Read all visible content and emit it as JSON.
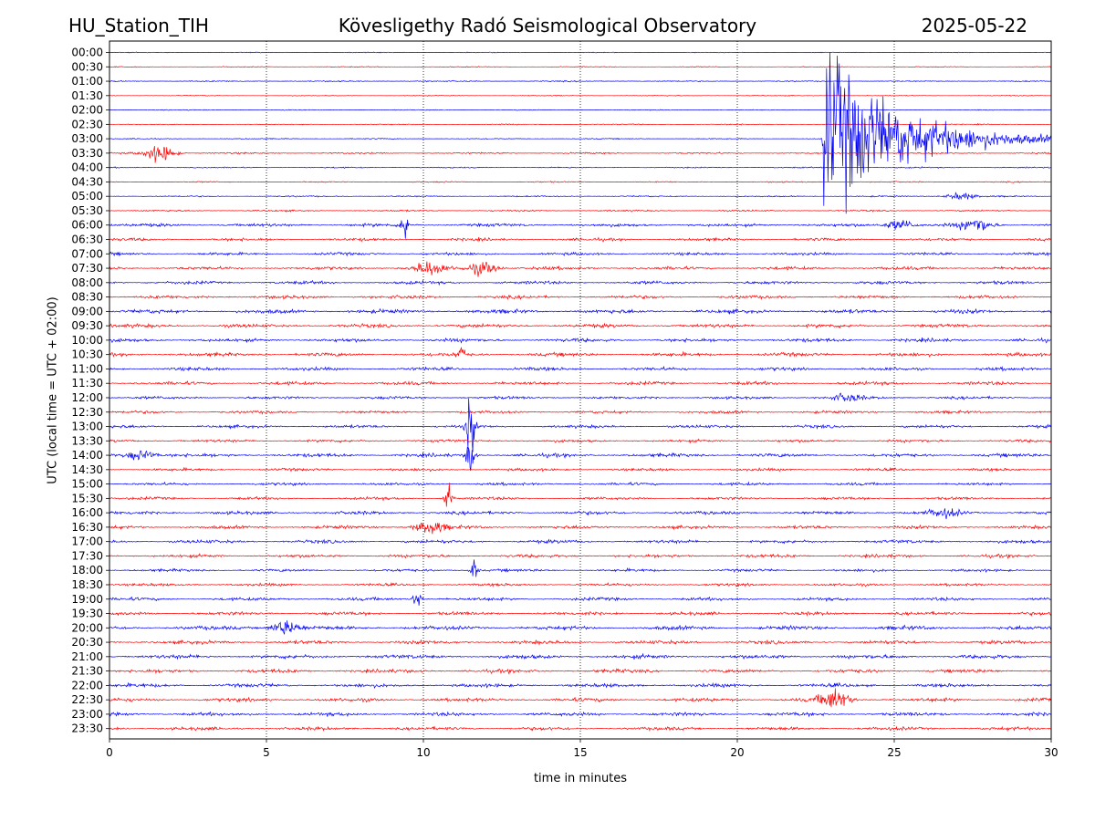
{
  "header": {
    "station": "HU_Station_TIH",
    "observatory": "Kövesligethy Radó Seismological Observatory",
    "date": "2025-05-22"
  },
  "chart_data": {
    "type": "line",
    "title": "Kövesligethy Radó Seismological Observatory",
    "xlabel": "time in minutes",
    "ylabel": "UTC (local time = UTC + 02:00)",
    "xlim": [
      0,
      30
    ],
    "x_ticks": [
      0,
      5,
      10,
      15,
      20,
      25,
      30
    ],
    "grid": "vertical dotted lines at 5-minute intervals",
    "row_labels": [
      "00:00",
      "00:30",
      "01:00",
      "01:30",
      "02:00",
      "02:30",
      "03:00",
      "03:30",
      "04:00",
      "04:30",
      "05:00",
      "05:30",
      "06:00",
      "06:30",
      "07:00",
      "07:30",
      "08:00",
      "08:30",
      "09:00",
      "09:30",
      "10:00",
      "10:30",
      "11:00",
      "11:30",
      "12:00",
      "12:30",
      "13:00",
      "13:30",
      "14:00",
      "14:30",
      "15:00",
      "15:30",
      "16:00",
      "16:30",
      "17:00",
      "17:30",
      "18:00",
      "18:30",
      "19:00",
      "19:30",
      "20:00",
      "20:30",
      "21:00",
      "21:30",
      "22:00",
      "22:30",
      "23:00",
      "23:30"
    ],
    "series_colors": [
      "#0000ff",
      "#ff0000"
    ],
    "row_noise_level": [
      0.2,
      0.2,
      0.3,
      0.2,
      0.2,
      0.25,
      0.25,
      0.4,
      0.3,
      0.3,
      0.35,
      0.4,
      0.8,
      0.75,
      0.7,
      0.8,
      0.8,
      0.8,
      1.0,
      0.9,
      0.9,
      0.9,
      0.85,
      0.85,
      0.7,
      0.7,
      0.75,
      0.7,
      0.9,
      0.7,
      0.7,
      0.7,
      0.85,
      0.8,
      0.85,
      0.8,
      0.7,
      0.7,
      0.8,
      0.85,
      1.0,
      0.9,
      1.0,
      0.9,
      0.9,
      0.9,
      0.9,
      0.85
    ],
    "events": [
      {
        "row": "03:00",
        "start_min": 22.7,
        "type": "earthquake",
        "peak_amplitude_rows": 6
      },
      {
        "row": "03:30",
        "start_min": 1.6,
        "type": "burst",
        "peak_amplitude_rows": 1.2
      },
      {
        "row": "05:00",
        "start_min": 27.1,
        "type": "burst",
        "peak_amplitude_rows": 0.5
      },
      {
        "row": "06:00",
        "start_min": 9.4,
        "type": "spike",
        "peak_amplitude_rows": 1.1
      },
      {
        "row": "06:00",
        "start_min": 25.2,
        "type": "burst",
        "peak_amplitude_rows": 0.7
      },
      {
        "row": "06:00",
        "start_min": 27.6,
        "type": "burst",
        "peak_amplitude_rows": 1.0
      },
      {
        "row": "07:30",
        "start_min": 10.2,
        "type": "burst",
        "peak_amplitude_rows": 0.9
      },
      {
        "row": "07:30",
        "start_min": 11.9,
        "type": "burst",
        "peak_amplitude_rows": 0.9
      },
      {
        "row": "10:30",
        "start_min": 11.2,
        "type": "spike",
        "peak_amplitude_rows": 0.7
      },
      {
        "row": "12:00",
        "start_min": 23.5,
        "type": "burst",
        "peak_amplitude_rows": 0.5
      },
      {
        "row": "13:00",
        "start_min": 11.5,
        "type": "spike",
        "peak_amplitude_rows": 2.5
      },
      {
        "row": "14:00",
        "start_min": 1.0,
        "type": "burst",
        "peak_amplitude_rows": 0.7
      },
      {
        "row": "14:00",
        "start_min": 11.5,
        "type": "spike",
        "peak_amplitude_rows": 1.5
      },
      {
        "row": "15:30",
        "start_min": 10.8,
        "type": "spike",
        "peak_amplitude_rows": 0.8
      },
      {
        "row": "16:00",
        "start_min": 26.6,
        "type": "burst",
        "peak_amplitude_rows": 0.6
      },
      {
        "row": "16:30",
        "start_min": 10.2,
        "type": "burst",
        "peak_amplitude_rows": 0.9
      },
      {
        "row": "18:00",
        "start_min": 11.6,
        "type": "spike",
        "peak_amplitude_rows": 0.7
      },
      {
        "row": "19:00",
        "start_min": 9.8,
        "type": "spike",
        "peak_amplitude_rows": 0.8
      },
      {
        "row": "20:00",
        "start_min": 5.6,
        "type": "burst",
        "peak_amplitude_rows": 1.0
      },
      {
        "row": "22:30",
        "start_min": 23.1,
        "type": "burst",
        "peak_amplitude_rows": 1.4
      }
    ]
  }
}
